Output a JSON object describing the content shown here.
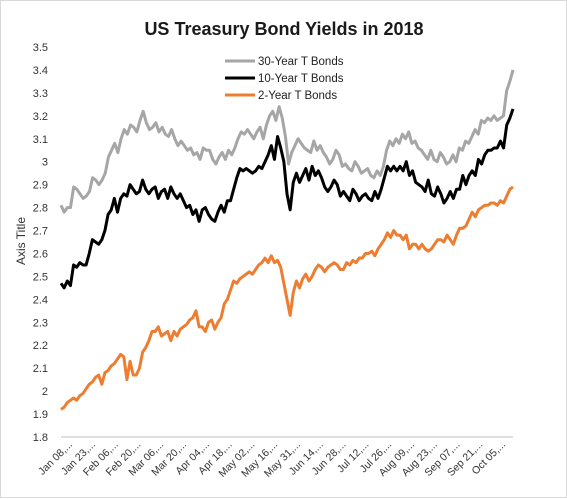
{
  "chart_data": {
    "type": "line",
    "title": "US Treasury Bond Yields in 2018",
    "xlabel": "",
    "ylabel": "Axis Title",
    "ylim": [
      1.8,
      3.5
    ],
    "ytick_step": 0.1,
    "grid": false,
    "legend": "top-center",
    "x_tick_labels": [
      "Jan 08,...",
      "Jan 23,...",
      "Feb 06,...",
      "Feb 20,...",
      "Mar 06,...",
      "Mar 20,...",
      "Apr 04,...",
      "Apr 18,...",
      "May 02,...",
      "May 16,...",
      "May 31,...",
      "Jun 14,...",
      "Jun 28,...",
      "Jul 12,...",
      "Jul 26,...",
      "Aug 09,...",
      "Aug 23,...",
      "Sep 07,...",
      "Sep 21,...",
      "Oct 05,..."
    ],
    "series": [
      {
        "name": "30-Year T Bonds",
        "color": "#a6a6a6",
        "values": [
          2.81,
          2.78,
          2.8,
          2.8,
          2.89,
          2.88,
          2.86,
          2.84,
          2.85,
          2.87,
          2.93,
          2.92,
          2.9,
          2.92,
          2.95,
          3.02,
          3.05,
          3.08,
          3.04,
          3.1,
          3.14,
          3.12,
          3.16,
          3.15,
          3.13,
          3.18,
          3.22,
          3.17,
          3.14,
          3.15,
          3.17,
          3.13,
          3.15,
          3.12,
          3.11,
          3.14,
          3.1,
          3.07,
          3.09,
          3.07,
          3.05,
          3.06,
          3.03,
          3.04,
          3.01,
          3.06,
          3.05,
          3.05,
          3.01,
          2.99,
          3.02,
          3.04,
          3.01,
          3.05,
          3.03,
          3.06,
          3.1,
          3.13,
          3.12,
          3.14,
          3.12,
          3.1,
          3.13,
          3.15,
          3.1,
          3.16,
          3.2,
          3.22,
          3.18,
          3.24,
          3.19,
          3.11,
          2.99,
          3.04,
          3.07,
          3.1,
          3.08,
          3.06,
          3.05,
          3.04,
          3.09,
          3.05,
          3.07,
          3.04,
          3.02,
          2.99,
          3.01,
          3.05,
          3.03,
          2.98,
          2.99,
          2.97,
          2.96,
          3.0,
          2.98,
          2.95,
          2.96,
          2.97,
          2.94,
          2.93,
          2.96,
          2.94,
          2.98,
          3.05,
          3.09,
          3.07,
          3.1,
          3.08,
          3.12,
          3.1,
          3.13,
          3.08,
          3.09,
          3.06,
          3.05,
          3.03,
          3.01,
          3.05,
          3.01,
          3.0,
          3.04,
          3.02,
          2.99,
          3.0,
          3.03,
          3.0,
          3.06,
          3.05,
          3.09,
          3.08,
          3.11,
          3.14,
          3.12,
          3.18,
          3.17,
          3.19,
          3.18,
          3.2,
          3.18,
          3.19,
          3.2,
          3.31,
          3.35,
          3.4
        ]
      },
      {
        "name": "10-Year T Bonds",
        "color": "#000000",
        "values": [
          2.47,
          2.45,
          2.48,
          2.46,
          2.55,
          2.54,
          2.56,
          2.55,
          2.55,
          2.6,
          2.66,
          2.65,
          2.64,
          2.66,
          2.7,
          2.77,
          2.79,
          2.84,
          2.78,
          2.84,
          2.86,
          2.85,
          2.9,
          2.88,
          2.86,
          2.87,
          2.92,
          2.88,
          2.86,
          2.88,
          2.89,
          2.84,
          2.87,
          2.88,
          2.84,
          2.89,
          2.86,
          2.84,
          2.86,
          2.83,
          2.8,
          2.81,
          2.77,
          2.79,
          2.74,
          2.79,
          2.8,
          2.77,
          2.75,
          2.74,
          2.78,
          2.81,
          2.78,
          2.83,
          2.83,
          2.88,
          2.93,
          2.97,
          2.96,
          2.97,
          2.96,
          2.95,
          2.96,
          2.98,
          2.97,
          3.0,
          3.03,
          3.07,
          3.01,
          3.11,
          3.06,
          3.0,
          2.86,
          2.79,
          2.91,
          2.95,
          2.91,
          2.94,
          2.97,
          2.92,
          2.98,
          2.94,
          2.96,
          2.93,
          2.89,
          2.87,
          2.89,
          2.92,
          2.9,
          2.85,
          2.87,
          2.85,
          2.83,
          2.88,
          2.86,
          2.83,
          2.85,
          2.86,
          2.84,
          2.83,
          2.87,
          2.84,
          2.88,
          2.93,
          2.98,
          2.96,
          2.98,
          2.96,
          2.98,
          2.96,
          3.0,
          2.94,
          2.96,
          2.91,
          2.9,
          2.89,
          2.87,
          2.92,
          2.86,
          2.85,
          2.89,
          2.86,
          2.82,
          2.84,
          2.87,
          2.84,
          2.88,
          2.88,
          2.94,
          2.9,
          2.94,
          2.96,
          2.94,
          3.01,
          2.99,
          3.03,
          3.05,
          3.05,
          3.06,
          3.06,
          3.09,
          3.06,
          3.16,
          3.19,
          3.23
        ]
      },
      {
        "name": "2-Year T Bonds",
        "color": "#ed7d31",
        "values": [
          1.92,
          1.93,
          1.95,
          1.96,
          1.97,
          1.96,
          1.98,
          1.99,
          2.01,
          2.03,
          2.04,
          2.06,
          2.07,
          2.03,
          2.08,
          2.09,
          2.11,
          2.12,
          2.14,
          2.16,
          2.15,
          2.05,
          2.13,
          2.07,
          2.07,
          2.1,
          2.17,
          2.19,
          2.22,
          2.26,
          2.26,
          2.28,
          2.24,
          2.25,
          2.26,
          2.22,
          2.26,
          2.24,
          2.27,
          2.28,
          2.29,
          2.31,
          2.32,
          2.35,
          2.28,
          2.28,
          2.26,
          2.3,
          2.31,
          2.27,
          2.3,
          2.32,
          2.38,
          2.4,
          2.44,
          2.48,
          2.47,
          2.49,
          2.5,
          2.51,
          2.52,
          2.51,
          2.53,
          2.55,
          2.56,
          2.58,
          2.56,
          2.59,
          2.56,
          2.57,
          2.54,
          2.47,
          2.4,
          2.33,
          2.43,
          2.48,
          2.45,
          2.49,
          2.51,
          2.48,
          2.5,
          2.53,
          2.55,
          2.54,
          2.52,
          2.54,
          2.55,
          2.56,
          2.55,
          2.53,
          2.53,
          2.56,
          2.55,
          2.57,
          2.56,
          2.58,
          2.58,
          2.6,
          2.6,
          2.61,
          2.59,
          2.62,
          2.64,
          2.66,
          2.69,
          2.67,
          2.7,
          2.68,
          2.68,
          2.66,
          2.68,
          2.62,
          2.64,
          2.64,
          2.62,
          2.64,
          2.62,
          2.61,
          2.62,
          2.64,
          2.66,
          2.66,
          2.65,
          2.68,
          2.66,
          2.64,
          2.68,
          2.71,
          2.71,
          2.72,
          2.75,
          2.78,
          2.76,
          2.79,
          2.8,
          2.81,
          2.81,
          2.82,
          2.82,
          2.81,
          2.83,
          2.82,
          2.85,
          2.88,
          2.89
        ]
      }
    ]
  }
}
